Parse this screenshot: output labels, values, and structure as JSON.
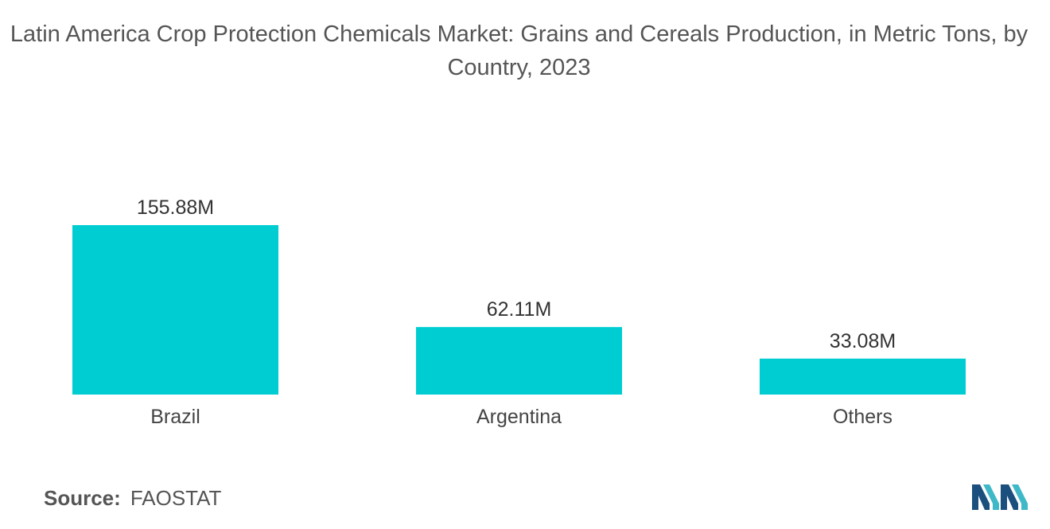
{
  "title": "Latin America Crop Protection Chemicals Market: Grains and Cereals Production, in Metric Tons, by Country, 2023",
  "source": {
    "label": "Source:",
    "value": "FAOSTAT"
  },
  "colors": {
    "bar": "#00CDD2",
    "logo_dark": "#1B4F7E",
    "logo_light": "#3FB8C7"
  },
  "chart_data": {
    "type": "bar",
    "title": "Latin America Crop Protection Chemicals Market: Grains and Cereals Production, in Metric Tons, by Country, 2023",
    "categories": [
      "Brazil",
      "Argentina",
      "Others"
    ],
    "values": [
      155.88,
      62.11,
      33.08
    ],
    "value_labels": [
      "155.88M",
      "62.11M",
      "33.08M"
    ],
    "unit": "M",
    "xlabel": "",
    "ylabel": "",
    "ylim": [
      0,
      155.88
    ],
    "grid": false,
    "legend": "none"
  }
}
